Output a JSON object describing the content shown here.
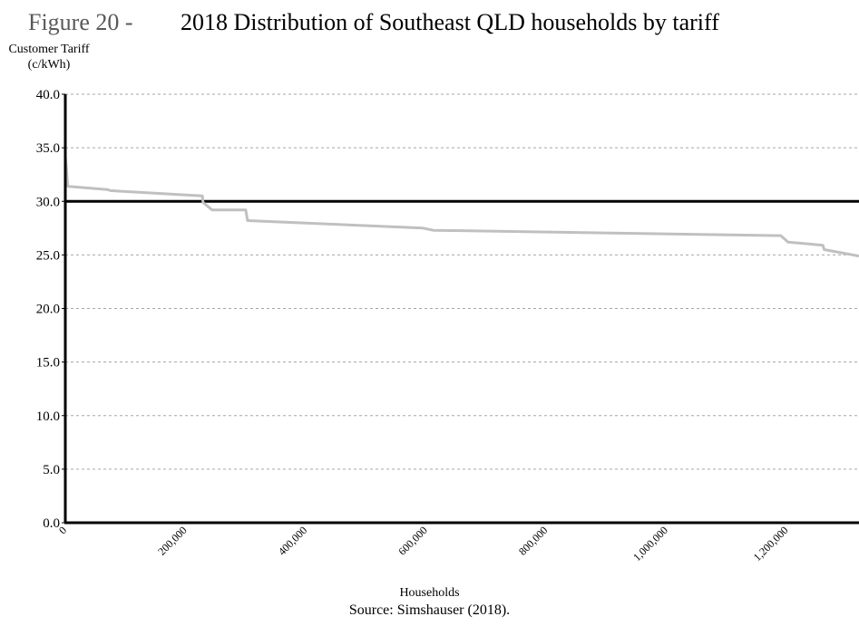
{
  "figure": {
    "label": "Figure 20 -",
    "title": "2018 Distribution of Southeast QLD households by tariff",
    "source": "Source: Simshauser (2018)."
  },
  "chart_data": {
    "type": "line",
    "ylabel_lines": [
      "Customer Tariff",
      "(c/kWh)"
    ],
    "xlabel": "Households",
    "ylim": [
      0,
      40
    ],
    "xlim": [
      0,
      1320000
    ],
    "y_ticks": [
      "0.0",
      "5.0",
      "10.0",
      "15.0",
      "20.0",
      "25.0",
      "30.0",
      "35.0",
      "40.0"
    ],
    "y_tick_values": [
      0,
      5,
      10,
      15,
      20,
      25,
      30,
      35,
      40
    ],
    "x_ticks": [
      "0",
      "200,000",
      "400,000",
      "600,000",
      "800,000",
      "1,000,000",
      "1,200,000"
    ],
    "x_tick_values": [
      0,
      200000,
      400000,
      600000,
      800000,
      1000000,
      1200000
    ],
    "grid": "horizontal dashed",
    "reference_line": {
      "y": 30,
      "color": "#000000"
    },
    "series": [
      {
        "color": "#c0c0c0",
        "x": [
          0,
          2000,
          4000,
          5000,
          70000,
          75000,
          228000,
          229000,
          244000,
          246000,
          300000,
          303000,
          595000,
          612000,
          1190000,
          1202000,
          1260000,
          1262000,
          1320000
        ],
        "y": [
          34.2,
          33.0,
          31.4,
          31.4,
          31.1,
          31.0,
          30.5,
          29.9,
          29.2,
          29.2,
          29.2,
          28.2,
          27.5,
          27.3,
          26.8,
          26.2,
          25.9,
          25.5,
          24.9
        ]
      }
    ]
  }
}
